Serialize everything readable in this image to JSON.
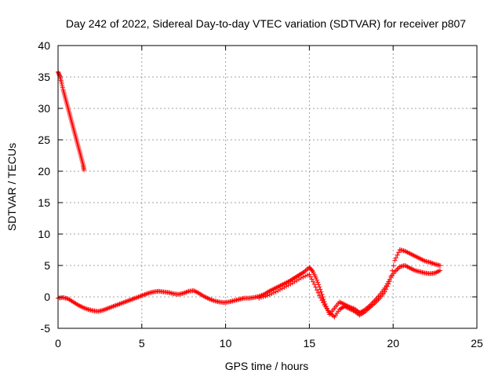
{
  "chart_data": {
    "type": "scatter",
    "title": "Day 242 of 2022, Sidereal Day-to-day VTEC variation (SDTVAR) for receiver p807",
    "xlabel": "GPS time / hours",
    "ylabel": "SDTVAR / TECUs",
    "xlim": [
      0,
      25
    ],
    "ylim": [
      -5,
      40
    ],
    "xticks": [
      0,
      5,
      10,
      15,
      20,
      25
    ],
    "yticks": [
      -5,
      0,
      5,
      10,
      15,
      20,
      25,
      30,
      35,
      40
    ],
    "xtick_labels": [
      "0",
      "5",
      "10",
      "15",
      "20",
      "25"
    ],
    "ytick_labels": [
      "-5",
      "0",
      "5",
      "10",
      "15",
      "20",
      "25",
      "30",
      "35",
      "40"
    ],
    "grid": true,
    "marker": "+",
    "color": "#ff0000",
    "series": [
      {
        "name": "high-start segment",
        "x": [
          0.0,
          0.1,
          0.2,
          0.3,
          0.4,
          0.5,
          0.6,
          0.7,
          0.8,
          0.9,
          1.0,
          1.1,
          1.2,
          1.3,
          1.4,
          1.5,
          1.55
        ],
        "y": [
          35.8,
          35.2,
          34.2,
          33.0,
          32.0,
          31.0,
          30.0,
          29.0,
          28.0,
          27.0,
          26.0,
          25.0,
          24.0,
          23.0,
          22.0,
          21.0,
          20.2
        ]
      },
      {
        "name": "main trace",
        "x": [
          0.0,
          0.3,
          0.6,
          0.9,
          1.2,
          1.5,
          1.8,
          2.1,
          2.4,
          2.7,
          3.0,
          3.3,
          3.6,
          3.9,
          4.2,
          4.5,
          4.8,
          5.1,
          5.4,
          5.7,
          6.0,
          6.3,
          6.6,
          6.9,
          7.2,
          7.5,
          7.8,
          8.1,
          8.4,
          8.7,
          9.0,
          9.3,
          9.6,
          9.9,
          10.2,
          10.5,
          10.8,
          11.1,
          11.4,
          11.7,
          12.0,
          12.3,
          12.6,
          12.9,
          13.2,
          13.5,
          13.8,
          14.1,
          14.4,
          14.7,
          15.0,
          15.2,
          15.4,
          15.6,
          15.8,
          16.0,
          16.2,
          16.5,
          16.8,
          17.1,
          17.4,
          17.7,
          18.0,
          18.3,
          18.6,
          18.9,
          19.2,
          19.5,
          19.8,
          20.1,
          20.4,
          20.7,
          21.0,
          21.3,
          21.6,
          21.9,
          22.2,
          22.5,
          22.8
        ],
        "y": [
          -0.2,
          -0.1,
          -0.3,
          -0.8,
          -1.3,
          -1.7,
          -2.0,
          -2.2,
          -2.3,
          -2.1,
          -1.8,
          -1.5,
          -1.2,
          -0.9,
          -0.6,
          -0.3,
          0.0,
          0.3,
          0.6,
          0.8,
          0.9,
          0.8,
          0.7,
          0.5,
          0.4,
          0.6,
          0.9,
          1.0,
          0.6,
          0.1,
          -0.3,
          -0.6,
          -0.8,
          -0.9,
          -0.8,
          -0.6,
          -0.4,
          -0.2,
          -0.2,
          -0.1,
          0.1,
          0.4,
          0.9,
          1.3,
          1.7,
          2.1,
          2.5,
          3.0,
          3.5,
          4.0,
          4.7,
          4.1,
          3.0,
          1.6,
          0.0,
          -1.5,
          -2.8,
          -1.8,
          -0.8,
          -1.2,
          -1.6,
          -1.9,
          -2.5,
          -2.1,
          -1.4,
          -0.6,
          0.3,
          1.4,
          2.8,
          4.0,
          4.8,
          5.0,
          4.6,
          4.2,
          4.0,
          3.8,
          3.7,
          3.8,
          4.2
        ]
      },
      {
        "name": "secondary trace",
        "x": [
          12.0,
          12.5,
          13.0,
          13.5,
          14.0,
          14.5,
          15.0,
          15.3,
          15.6,
          15.9,
          16.2,
          16.5,
          16.8,
          17.1,
          17.4,
          17.7,
          18.0,
          18.3,
          18.6,
          18.9,
          19.2,
          19.5,
          19.8,
          20.1,
          20.4,
          20.7,
          21.0,
          21.3,
          21.6,
          21.9,
          22.2,
          22.5,
          22.8
        ],
        "y": [
          -0.2,
          0.2,
          0.8,
          1.5,
          2.2,
          3.0,
          3.6,
          2.0,
          0.2,
          -1.3,
          -2.5,
          -3.2,
          -2.0,
          -1.5,
          -1.9,
          -2.3,
          -2.9,
          -2.4,
          -1.7,
          -1.0,
          -0.2,
          0.8,
          2.5,
          5.8,
          7.5,
          7.3,
          6.9,
          6.5,
          6.1,
          5.7,
          5.5,
          5.2,
          5.0
        ]
      }
    ]
  }
}
